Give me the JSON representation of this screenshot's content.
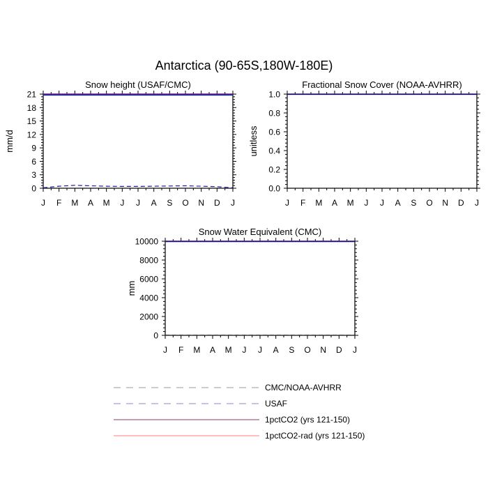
{
  "figure_title": "Antarctica (90-65S,180W-180E)",
  "chart_data": [
    {
      "type": "line",
      "title": "Snow height (USAF/CMC)",
      "ylabel": "mm/d",
      "xlabel": "",
      "categories": [
        "J",
        "F",
        "M",
        "A",
        "M",
        "J",
        "J",
        "A",
        "S",
        "O",
        "N",
        "D",
        "J"
      ],
      "ylim": [
        0,
        21
      ],
      "yticks": [
        0,
        3,
        6,
        9,
        12,
        15,
        18,
        21
      ],
      "ytick_labels": [
        "0",
        "3",
        "6",
        "9",
        "12",
        "15",
        "18",
        "21"
      ],
      "series": [
        {
          "name": "USAF",
          "color": "#1a1a9c",
          "dash": "dashed",
          "values": [
            0.1,
            0.45,
            0.65,
            0.55,
            0.45,
            0.4,
            0.4,
            0.45,
            0.5,
            0.55,
            0.45,
            0.35,
            0.1
          ]
        },
        {
          "name": "1pctCO2 (yrs 121-150)",
          "color": "#6a1a8c",
          "dash": "solid",
          "values": [
            21,
            21,
            21,
            21,
            21,
            21,
            21,
            21,
            21,
            21,
            21,
            21,
            21
          ]
        },
        {
          "name": "1pctCO2-rad (yrs 121-150)",
          "color": "#1a2aa8",
          "dash": "solid",
          "values": [
            20.8,
            20.8,
            20.8,
            20.8,
            20.8,
            20.8,
            20.8,
            20.8,
            20.8,
            20.8,
            20.8,
            20.8,
            20.8
          ]
        }
      ]
    },
    {
      "type": "line",
      "title": "Fractional Snow Cover (NOAA-AVHRR)",
      "ylabel": "unitless",
      "xlabel": "",
      "categories": [
        "J",
        "F",
        "M",
        "A",
        "M",
        "J",
        "J",
        "A",
        "S",
        "O",
        "N",
        "D",
        "J"
      ],
      "ylim": [
        0,
        1
      ],
      "yticks": [
        0,
        0.2,
        0.4,
        0.6,
        0.8,
        1.0
      ],
      "ytick_labels": [
        "0.0",
        "0.2",
        "0.4",
        "0.6",
        "0.8",
        "1.0"
      ],
      "series": [
        {
          "name": "1pctCO2 (yrs 121-150)",
          "color": "#6a1a8c",
          "dash": "solid",
          "values": [
            1,
            1,
            1,
            1,
            1,
            1,
            1,
            1,
            1,
            1,
            1,
            1,
            1
          ]
        },
        {
          "name": "1pctCO2-rad (yrs 121-150)",
          "color": "#1a1a7a",
          "dash": "solid",
          "values": [
            0.998,
            0.998,
            0.998,
            0.998,
            0.998,
            0.998,
            0.998,
            0.998,
            0.998,
            0.998,
            0.998,
            0.998,
            0.998
          ]
        }
      ]
    },
    {
      "type": "line",
      "title": "Snow Water Equivalent (CMC)",
      "ylabel": "mm",
      "xlabel": "",
      "categories": [
        "J",
        "F",
        "M",
        "A",
        "M",
        "J",
        "J",
        "A",
        "S",
        "O",
        "N",
        "D",
        "J"
      ],
      "ylim": [
        0,
        10000
      ],
      "yticks": [
        0,
        2000,
        4000,
        6000,
        8000,
        10000
      ],
      "ytick_labels": [
        "0",
        "2000",
        "4000",
        "6000",
        "8000",
        "10000"
      ],
      "series": [
        {
          "name": "CMC/NOAA-AVHRR",
          "color": "#333333",
          "dash": "dashed",
          "values": [
            20,
            20,
            20,
            20,
            20,
            20,
            20,
            20,
            20,
            20,
            20,
            20,
            20
          ]
        },
        {
          "name": "1pctCO2 (yrs 121-150)",
          "color": "#6a1a8c",
          "dash": "solid",
          "values": [
            10000,
            10000,
            10000,
            10000,
            10000,
            10000,
            10000,
            10000,
            10000,
            10000,
            10000,
            10000,
            10000
          ]
        },
        {
          "name": "1pctCO2-rad (yrs 121-150)",
          "color": "#1a1a7a",
          "dash": "solid",
          "values": [
            9960,
            9960,
            9960,
            9960,
            9960,
            9960,
            9960,
            9960,
            9960,
            9960,
            9960,
            9960,
            9960
          ]
        }
      ]
    }
  ],
  "legend": {
    "entries": [
      {
        "label": "CMC/NOAA-AVHRR",
        "color": "#999999",
        "dash": "dashed"
      },
      {
        "label": "USAF",
        "color": "#8888cc",
        "dash": "dashed"
      },
      {
        "label": "1pctCO2 (yrs 121-150)",
        "color": "#8a3a6a",
        "dash": "solid"
      },
      {
        "label": "1pctCO2-rad (yrs 121-150)",
        "color": "#ff7f7f",
        "dash": "solid"
      }
    ]
  }
}
